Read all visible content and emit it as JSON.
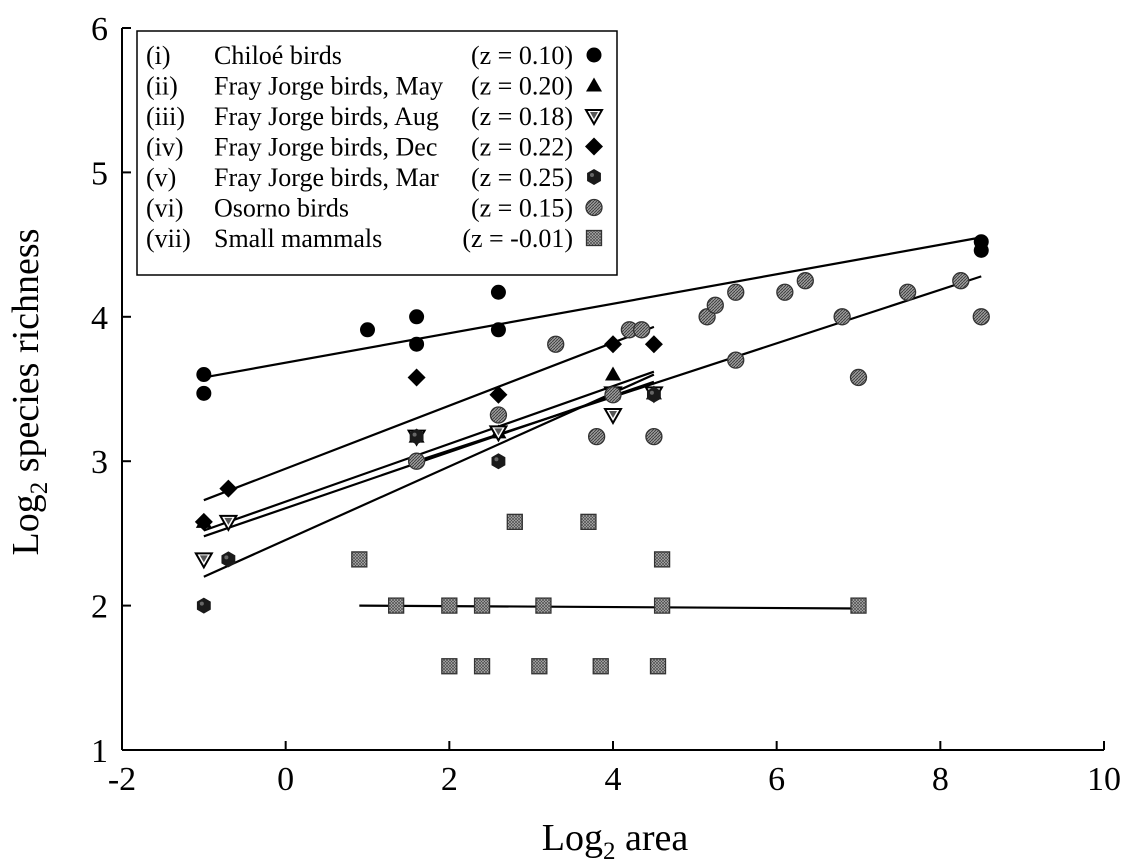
{
  "chart_data": {
    "type": "scatter",
    "xlabel": "Log2 area",
    "ylabel": "Log2 species richness",
    "xlim": [
      -2,
      10
    ],
    "ylim": [
      1,
      6
    ],
    "xticks": [
      -2,
      0,
      2,
      4,
      6,
      8,
      10
    ],
    "yticks": [
      1,
      2,
      3,
      4,
      5,
      6
    ],
    "grid": false,
    "legend_position": "top-left",
    "series": [
      {
        "legend_num": "(i)",
        "legend_name": "Chiloé birds",
        "legend_z": "(z = 0.10)",
        "marker": "circle",
        "color": "#000000",
        "points": [
          [
            -1,
            3.6
          ],
          [
            -1,
            3.47
          ],
          [
            1,
            3.91
          ],
          [
            1.6,
            3.81
          ],
          [
            1.6,
            4.0
          ],
          [
            2.6,
            3.91
          ],
          [
            2.6,
            4.17
          ],
          [
            8.5,
            4.52
          ],
          [
            8.5,
            4.46
          ]
        ],
        "fit": [
          [
            -1,
            3.58
          ],
          [
            8.5,
            4.55
          ]
        ]
      },
      {
        "legend_num": "(ii)",
        "legend_name": "Fray Jorge birds, May",
        "legend_z": "(z = 0.20)",
        "marker": "triangle-up",
        "color": "#000000",
        "points": [
          [
            -1,
            2.58
          ],
          [
            1.6,
            3.17
          ],
          [
            2.6,
            3.2
          ],
          [
            4,
            3.6
          ],
          [
            4,
            3.47
          ],
          [
            4.5,
            3.47
          ]
        ],
        "fit": [
          [
            -1,
            2.52
          ],
          [
            4.5,
            3.62
          ]
        ]
      },
      {
        "legend_num": "(iii)",
        "legend_name": "Fray Jorge birds, Aug",
        "legend_z": "(z = 0.18)",
        "marker": "triangle-down",
        "color": "#000000",
        "points": [
          [
            -1,
            2.32
          ],
          [
            -0.7,
            2.58
          ],
          [
            1.6,
            3.17
          ],
          [
            2.6,
            3.2
          ],
          [
            4,
            3.32
          ],
          [
            4,
            3.47
          ],
          [
            4.5,
            3.47
          ]
        ],
        "fit": [
          [
            -1,
            2.48
          ],
          [
            4.5,
            3.55
          ]
        ]
      },
      {
        "legend_num": "(iv)",
        "legend_name": "Fray Jorge birds, Dec",
        "legend_z": "(z = 0.22)",
        "marker": "diamond",
        "color": "#000000",
        "points": [
          [
            -1,
            2.58
          ],
          [
            -0.7,
            2.81
          ],
          [
            1.6,
            3.58
          ],
          [
            2.6,
            3.46
          ],
          [
            4,
            3.81
          ],
          [
            4.5,
            3.81
          ]
        ],
        "fit": [
          [
            -1,
            2.73
          ],
          [
            4.5,
            3.93
          ]
        ]
      },
      {
        "legend_num": "(v)",
        "legend_name": "Fray Jorge birds, Mar",
        "legend_z": "(z =  0.25)",
        "marker": "hexagon",
        "color": "#1a1a1a",
        "points": [
          [
            -1,
            2.0
          ],
          [
            -0.7,
            2.32
          ],
          [
            1.6,
            3.17
          ],
          [
            2.6,
            3.0
          ],
          [
            4,
            3.46
          ],
          [
            4.5,
            3.46
          ]
        ],
        "fit": [
          [
            -1,
            2.2
          ],
          [
            4.5,
            3.6
          ]
        ]
      },
      {
        "legend_num": "(vi)",
        "legend_name": "Osorno birds",
        "legend_z": "(z =  0.15)",
        "marker": "circle-hatched",
        "color": "#7a7a7a",
        "points": [
          [
            1.6,
            3.0
          ],
          [
            2.6,
            3.32
          ],
          [
            3.3,
            3.81
          ],
          [
            3.8,
            3.17
          ],
          [
            4,
            3.46
          ],
          [
            4.2,
            3.91
          ],
          [
            4.35,
            3.91
          ],
          [
            4.5,
            3.17
          ],
          [
            5.15,
            4.0
          ],
          [
            5.25,
            4.08
          ],
          [
            5.5,
            3.7
          ],
          [
            5.5,
            4.17
          ],
          [
            6.1,
            4.17
          ],
          [
            6.35,
            4.25
          ],
          [
            6.8,
            4.0
          ],
          [
            7,
            3.58
          ],
          [
            7.6,
            4.17
          ],
          [
            8.25,
            4.25
          ],
          [
            8.5,
            4.0
          ]
        ],
        "fit": [
          [
            1.6,
            3.0
          ],
          [
            8.5,
            4.28
          ]
        ]
      },
      {
        "legend_num": "(vii)",
        "legend_name": "Small mammals",
        "legend_z": "(z = -0.01)",
        "marker": "square-hatched",
        "color": "#8a8a8a",
        "points": [
          [
            0.9,
            2.32
          ],
          [
            1.35,
            2.0
          ],
          [
            2.0,
            2.0
          ],
          [
            2.0,
            1.58
          ],
          [
            2.4,
            2.0
          ],
          [
            2.4,
            1.58
          ],
          [
            2.8,
            2.58
          ],
          [
            3.1,
            1.58
          ],
          [
            3.15,
            2.0
          ],
          [
            3.7,
            2.58
          ],
          [
            3.85,
            1.58
          ],
          [
            4.55,
            1.58
          ],
          [
            4.6,
            2.32
          ],
          [
            4.6,
            2.0
          ],
          [
            7.0,
            2.0
          ]
        ],
        "fit": [
          [
            0.9,
            2.0
          ],
          [
            7.0,
            1.98
          ]
        ]
      }
    ]
  }
}
